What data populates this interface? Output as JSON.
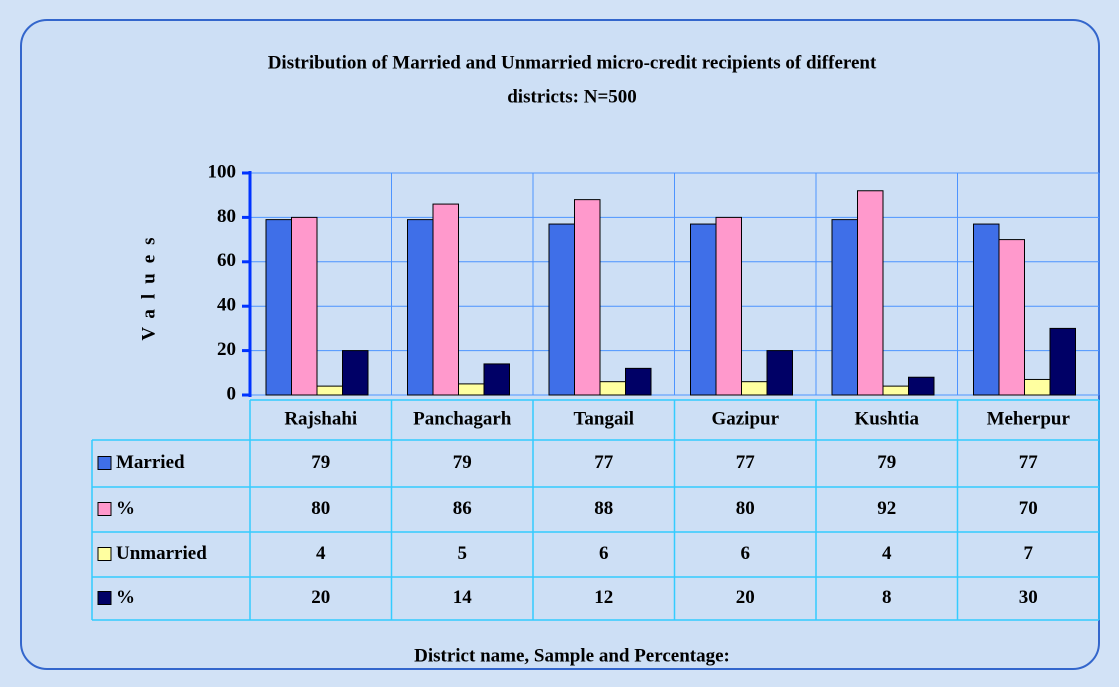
{
  "chart_data": {
    "type": "bar",
    "title": "Distribution of Married and Unmarried micro-credit recipients of different districts: N=500",
    "title_lines": [
      "Distribution of Married and Unmarried micro-credit recipients of different",
      "districts: N=500"
    ],
    "ylabel": "Values",
    "xlabel": "District name, Sample and Percentage:",
    "categories": [
      "Rajshahi",
      "Panchagarh",
      "Tangail",
      "Gazipur",
      "Kushtia",
      "Meherpur"
    ],
    "series": [
      {
        "name": "Married",
        "color": "#3f6fe8",
        "values": [
          79,
          79,
          77,
          77,
          79,
          77
        ]
      },
      {
        "name": "%",
        "color": "#ff99cc",
        "values": [
          80,
          86,
          88,
          80,
          92,
          70
        ]
      },
      {
        "name": "Unmarried",
        "color": "#ffffa0",
        "values": [
          4,
          5,
          6,
          6,
          4,
          7
        ]
      },
      {
        "name": "%",
        "color": "#000066",
        "values": [
          20,
          14,
          12,
          20,
          8,
          30
        ]
      }
    ],
    "ylim": [
      0,
      100
    ],
    "yticks": [
      0,
      20,
      40,
      60,
      80,
      100
    ],
    "grid": true,
    "data_table": true
  }
}
